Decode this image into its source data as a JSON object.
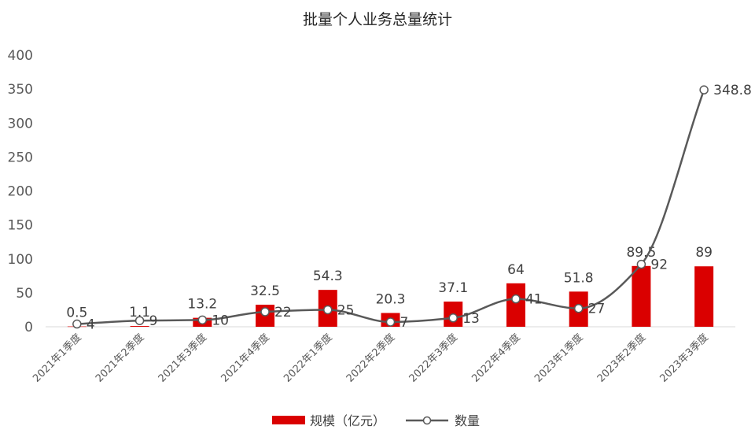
{
  "chart_data": {
    "type": "bar",
    "title": "批量个人业务总量统计",
    "categories": [
      "2021年1季度",
      "2021年2季度",
      "2021年3季度",
      "2021年4季度",
      "2022年1季度",
      "2022年2季度",
      "2022年3季度",
      "2022年4季度",
      "2023年1季度",
      "2023年2季度",
      "2023年3季度"
    ],
    "ylim": [
      0,
      400
    ],
    "yticks": [
      0,
      50,
      100,
      150,
      200,
      250,
      300,
      350,
      400
    ],
    "grid": false,
    "legend_position": "bottom",
    "series": [
      {
        "name": "规模（亿元）",
        "type": "bar",
        "color": "#DA0000",
        "values": [
          0.5,
          1.1,
          13.2,
          32.5,
          54.3,
          20.3,
          37.1,
          64,
          51.8,
          89.5,
          89
        ],
        "labels": [
          "0.5",
          "1.1",
          "13.2",
          "32.5",
          "54.3",
          "20.3",
          "37.1",
          "64",
          "51.8",
          "89.5",
          "89"
        ]
      },
      {
        "name": "数量",
        "type": "line",
        "smooth": true,
        "marker": "circle",
        "color": "#595959",
        "values": [
          4,
          9,
          10,
          22,
          25,
          7,
          13,
          41,
          27,
          92,
          348.8
        ],
        "labels": [
          "4",
          "9",
          "10",
          "22",
          "25",
          "7",
          "13",
          "41",
          "27",
          "92",
          "348.8"
        ]
      }
    ]
  }
}
